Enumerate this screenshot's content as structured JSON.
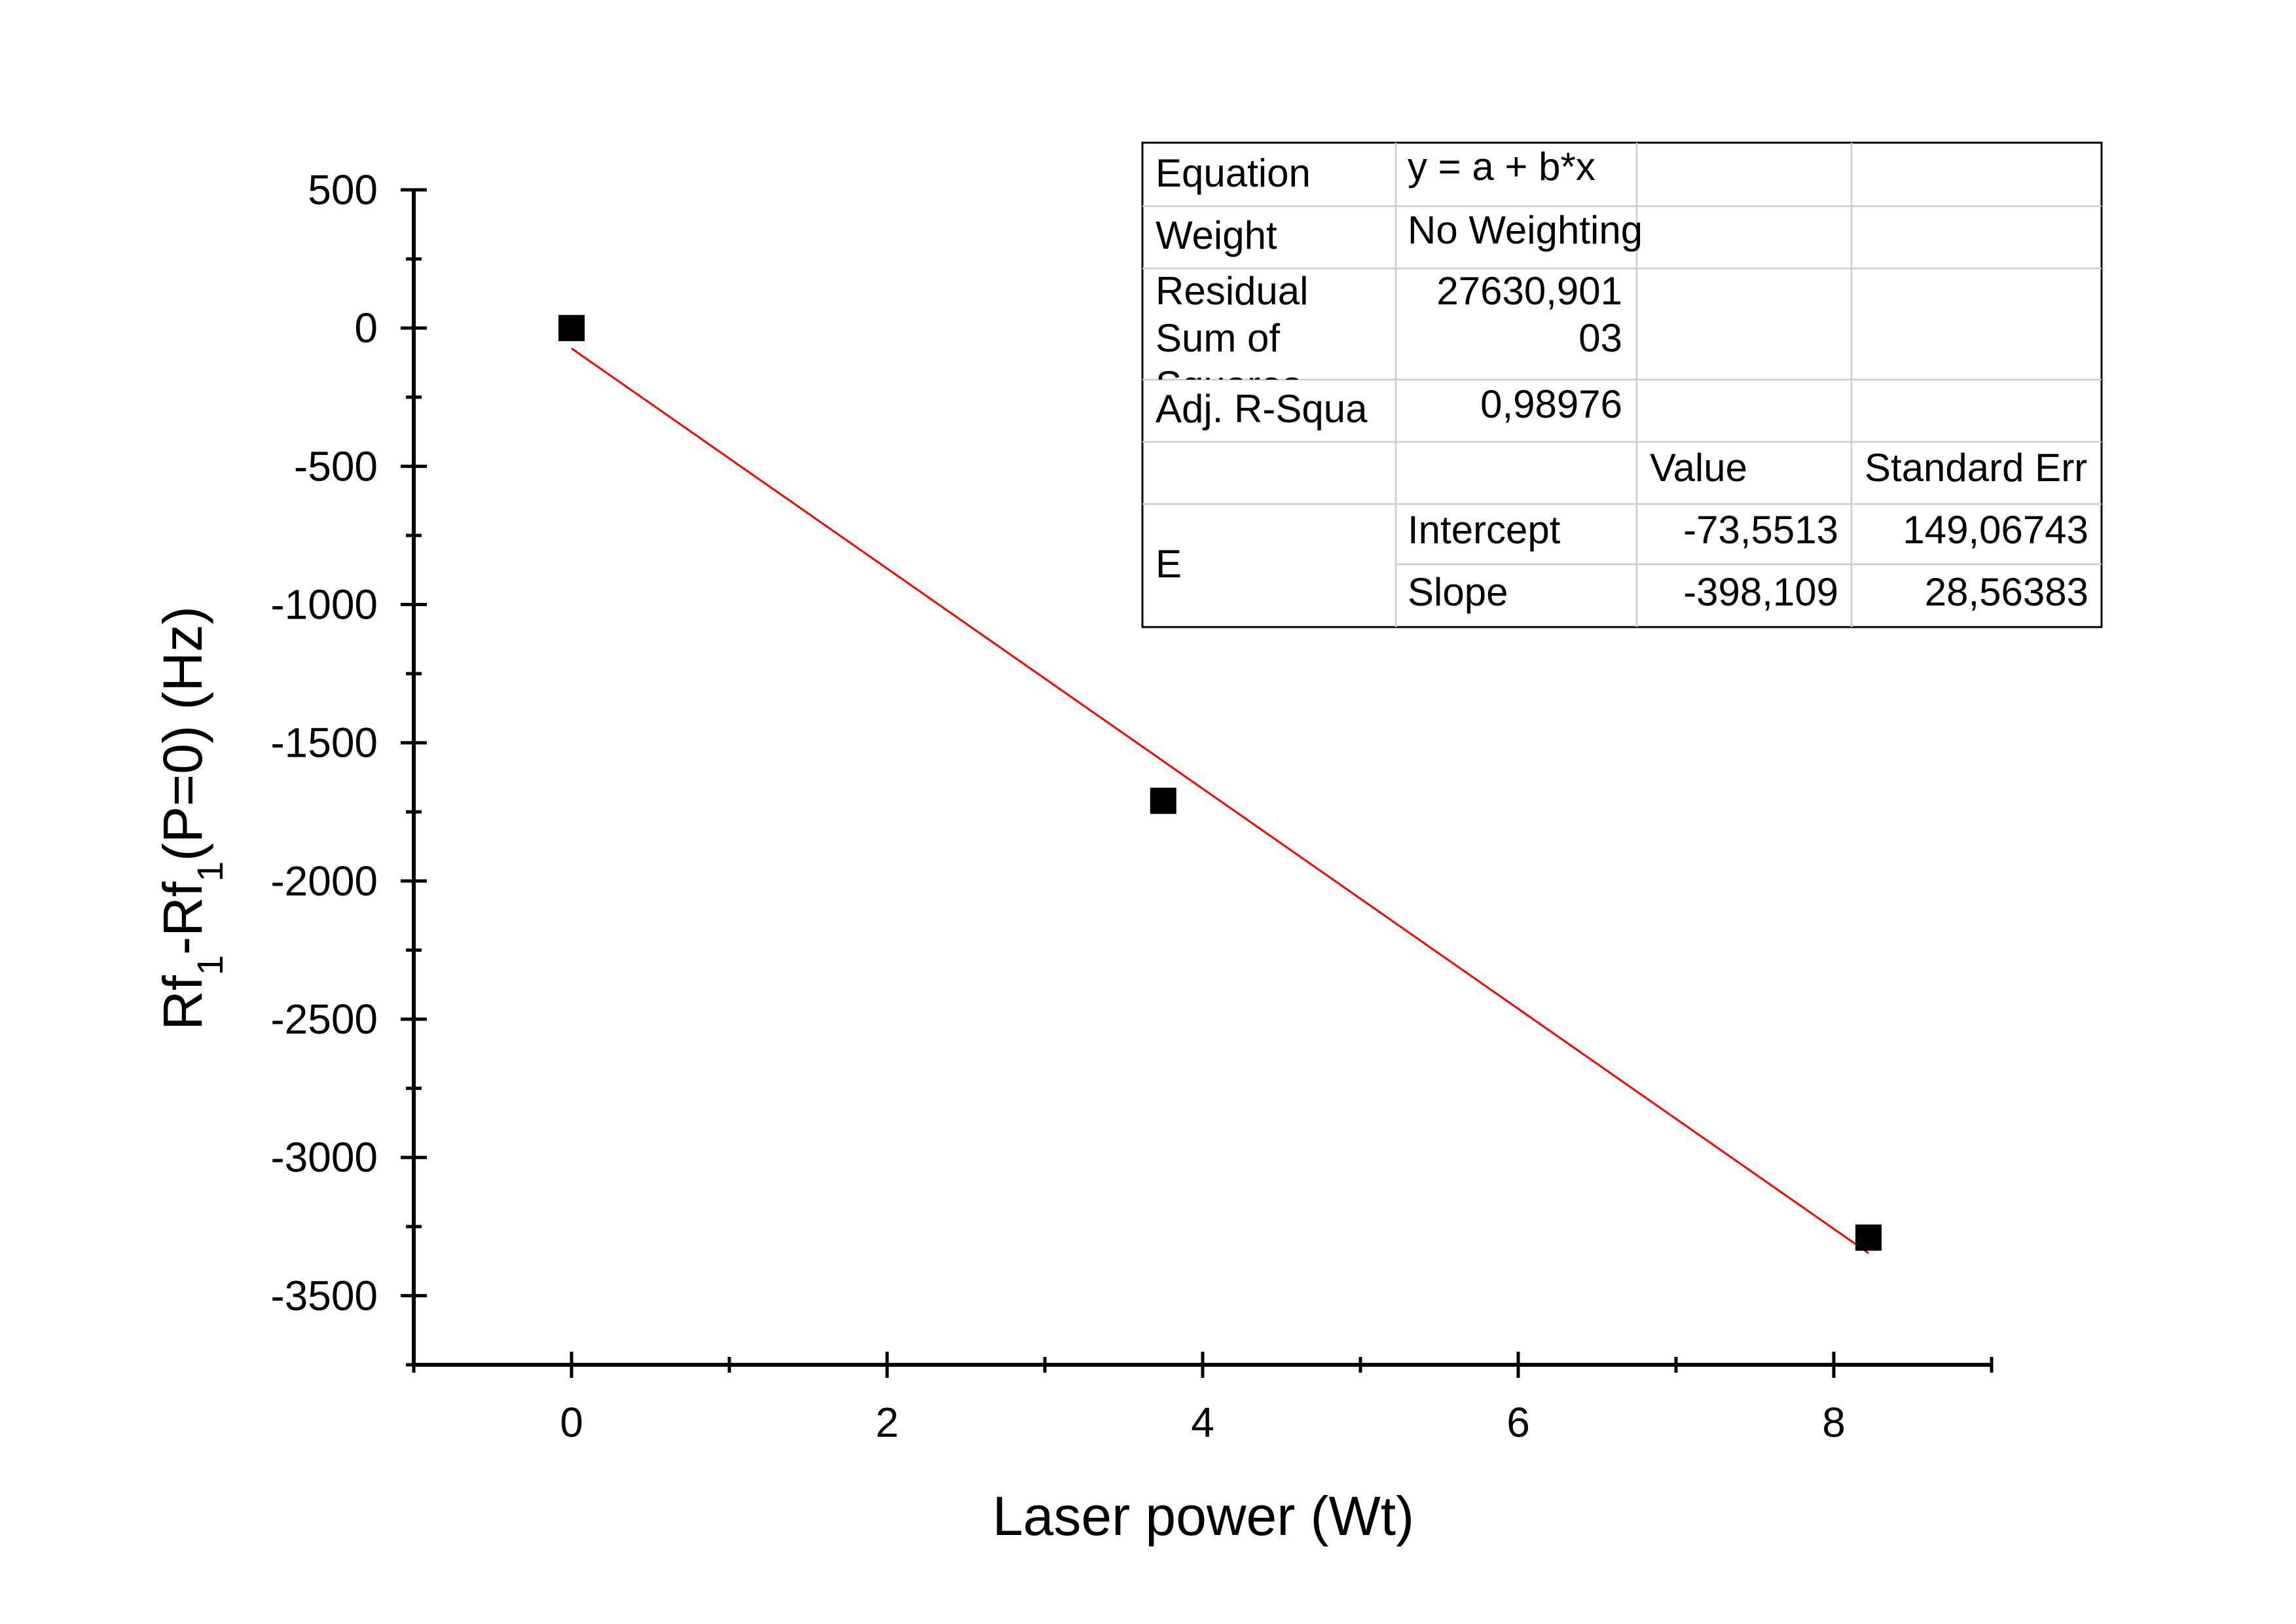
{
  "chart_data": {
    "type": "scatter",
    "xlabel": "Laser power (Wt)",
    "ylabel": {
      "parts": [
        {
          "text": "Rf",
          "sub": false
        },
        {
          "text": "1",
          "sub": true
        },
        {
          "text": "-Rf",
          "sub": false
        },
        {
          "text": "1",
          "sub": true
        },
        {
          "text": "(P=0) (Hz)",
          "sub": false
        }
      ]
    },
    "xlim": [
      -1,
      9
    ],
    "ylim": [
      -3750,
      500
    ],
    "x_ticks": [
      0,
      2,
      4,
      6,
      8
    ],
    "x_minor_ticks": [
      -1,
      1,
      3,
      5,
      7,
      9
    ],
    "y_ticks": [
      500,
      0,
      -500,
      -1000,
      -1500,
      -2000,
      -2500,
      -3000,
      -3500
    ],
    "y_minor_ticks": [
      250,
      -250,
      -750,
      -1250,
      -1750,
      -2250,
      -2750,
      -3250,
      -3750
    ],
    "x_tick_labels": [
      "0",
      "2",
      "4",
      "6",
      "8"
    ],
    "y_tick_labels": [
      "500",
      "0",
      "-500",
      "-1000",
      "-1500",
      "-2000",
      "-2500",
      "-3000",
      "-3500"
    ],
    "grid": false,
    "series": [
      {
        "marker": "square",
        "color": "#000000",
        "x": [
          0,
          3.75,
          8.22
        ],
        "y": [
          0,
          -1710,
          -3290
        ]
      }
    ],
    "fit": {
      "color": "#ff0000",
      "intercept": -73.5513,
      "slope": -398.109,
      "x_range": [
        0,
        8.22
      ]
    },
    "stats_table": {
      "rows": [
        [
          "Equation",
          "y = a + b*x",
          "",
          ""
        ],
        [
          "Weight",
          "No Weighting",
          "",
          ""
        ],
        [
          "Residual\nSum of\nSquares",
          "27630,901\n03",
          "",
          ""
        ],
        [
          "Adj. R-Squa",
          "0,98976",
          "",
          ""
        ],
        [
          "",
          "",
          "Value",
          "Standard Err"
        ],
        [
          "E",
          "Intercept",
          "-73,5513",
          "149,06743"
        ],
        [
          "",
          "Slope",
          "-398,109",
          "28,56383"
        ]
      ]
    }
  }
}
